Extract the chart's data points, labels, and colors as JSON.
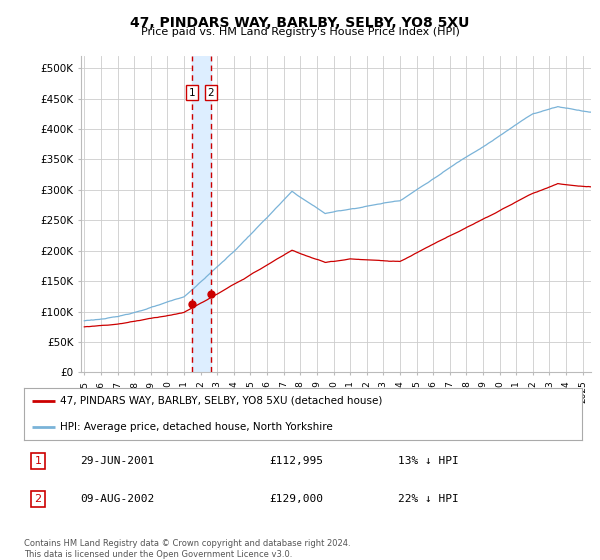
{
  "title": "47, PINDARS WAY, BARLBY, SELBY, YO8 5XU",
  "subtitle": "Price paid vs. HM Land Registry's House Price Index (HPI)",
  "ylabel_ticks": [
    "£0",
    "£50K",
    "£100K",
    "£150K",
    "£200K",
    "£250K",
    "£300K",
    "£350K",
    "£400K",
    "£450K",
    "£500K"
  ],
  "ytick_values": [
    0,
    50000,
    100000,
    150000,
    200000,
    250000,
    300000,
    350000,
    400000,
    450000,
    500000
  ],
  "ylim": [
    0,
    520000
  ],
  "xlim_start": 1994.8,
  "xlim_end": 2025.5,
  "hpi_color": "#7ab3d8",
  "price_color": "#cc0000",
  "dashed_line_color": "#cc0000",
  "shade_color": "#ddeeff",
  "transaction1_date": 2001.49,
  "transaction2_date": 2002.61,
  "transaction1_price": 112995,
  "transaction2_price": 129000,
  "legend_label1": "47, PINDARS WAY, BARLBY, SELBY, YO8 5XU (detached house)",
  "legend_label2": "HPI: Average price, detached house, North Yorkshire",
  "table_row1_num": "1",
  "table_row1_date": "29-JUN-2001",
  "table_row1_price": "£112,995",
  "table_row1_hpi": "13% ↓ HPI",
  "table_row2_num": "2",
  "table_row2_date": "09-AUG-2002",
  "table_row2_price": "£129,000",
  "table_row2_hpi": "22% ↓ HPI",
  "footer": "Contains HM Land Registry data © Crown copyright and database right 2024.\nThis data is licensed under the Open Government Licence v3.0.",
  "background_color": "#ffffff",
  "grid_color": "#cccccc"
}
